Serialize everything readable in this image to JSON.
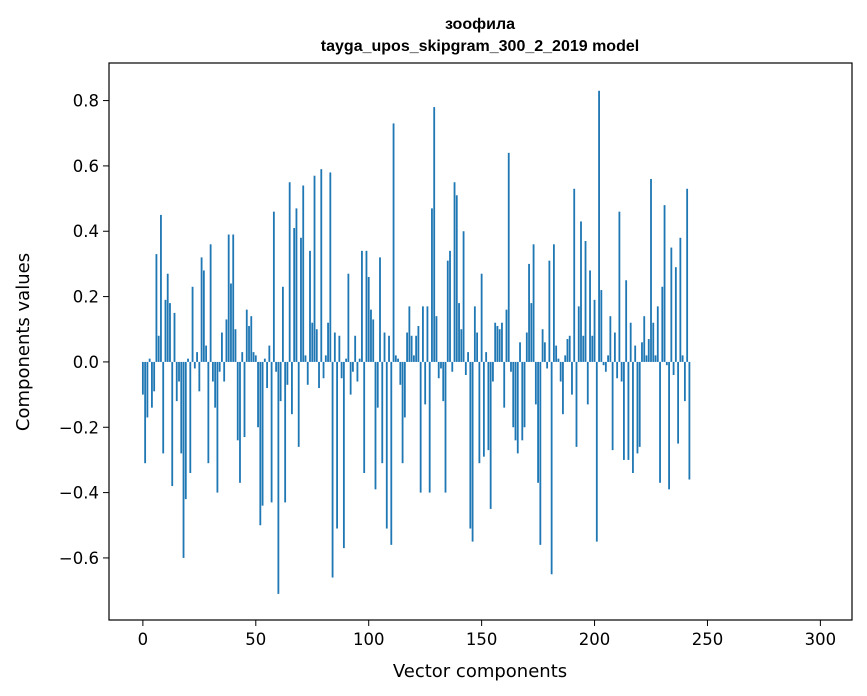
{
  "chart_data": {
    "type": "bar",
    "title_line1": "зоофила",
    "title_line2": "tayga_upos_skipgram_300_2_2019 model",
    "xlabel": "Vector components",
    "ylabel": "Components values",
    "xlim": [
      -15,
      314
    ],
    "ylim": [
      -0.79,
      0.915
    ],
    "x_ticks": [
      0,
      50,
      100,
      150,
      200,
      250,
      300
    ],
    "x_tick_labels": [
      "0",
      "50",
      "100",
      "150",
      "200",
      "250",
      "300"
    ],
    "y_ticks": [
      -0.6,
      -0.4,
      -0.2,
      0.0,
      0.2,
      0.4,
      0.6,
      0.8
    ],
    "y_tick_labels": [
      "−0.6",
      "−0.4",
      "−0.2",
      "0.0",
      "0.2",
      "0.4",
      "0.6",
      "0.8"
    ],
    "bar_color": "#1f77b4",
    "grid": false,
    "series": [
      {
        "name": "components",
        "values": [
          -0.1,
          -0.31,
          -0.17,
          0.01,
          -0.14,
          -0.09,
          0.33,
          0.08,
          0.45,
          -0.28,
          0.19,
          0.27,
          0.18,
          -0.38,
          0.15,
          -0.12,
          -0.06,
          -0.28,
          -0.6,
          -0.42,
          0.01,
          -0.34,
          0.23,
          -0.02,
          0.03,
          -0.09,
          0.32,
          0.28,
          0.05,
          -0.31,
          0.36,
          -0.06,
          -0.14,
          -0.4,
          -0.03,
          0.09,
          -0.06,
          0.13,
          0.39,
          0.24,
          0.39,
          0.1,
          -0.24,
          -0.37,
          0.03,
          -0.23,
          0.16,
          0.11,
          0.14,
          0.03,
          0.02,
          -0.2,
          -0.5,
          -0.44,
          0.01,
          -0.08,
          0.05,
          -0.43,
          0.46,
          -0.03,
          -0.71,
          -0.12,
          0.23,
          -0.43,
          -0.07,
          0.55,
          -0.16,
          0.41,
          0.47,
          -0.26,
          0.38,
          0.54,
          0.02,
          -0.07,
          0.34,
          0.12,
          0.57,
          0.1,
          -0.08,
          0.59,
          -0.05,
          0.02,
          0.12,
          0.58,
          -0.66,
          0.09,
          -0.51,
          0.08,
          -0.05,
          -0.57,
          0.01,
          0.27,
          -0.1,
          -0.03,
          0.08,
          -0.06,
          0.01,
          0.34,
          -0.34,
          0.34,
          0.26,
          0.16,
          0.13,
          -0.39,
          -0.14,
          0.32,
          -0.31,
          0.09,
          -0.51,
          0.08,
          -0.56,
          0.73,
          0.02,
          0.01,
          -0.07,
          -0.31,
          -0.17,
          0.09,
          0.17,
          0.08,
          0.02,
          0.08,
          0.11,
          -0.4,
          0.17,
          -0.13,
          0.17,
          -0.4,
          0.47,
          0.78,
          0.14,
          -0.05,
          -0.02,
          -0.12,
          -0.4,
          0.31,
          0.34,
          -0.03,
          0.55,
          0.51,
          0.18,
          0.1,
          0.4,
          -0.04,
          0.03,
          -0.51,
          -0.55,
          0.17,
          0.09,
          -0.31,
          0.27,
          -0.29,
          0.03,
          -0.27,
          -0.45,
          -0.06,
          0.12,
          0.11,
          0.1,
          0.12,
          -0.14,
          0.16,
          0.64,
          -0.03,
          -0.2,
          -0.24,
          -0.28,
          0.06,
          -0.24,
          -0.2,
          0.09,
          0.3,
          0.18,
          0.36,
          -0.13,
          -0.37,
          -0.56,
          0.1,
          0.06,
          -0.02,
          0.31,
          -0.65,
          0.36,
          0.05,
          0.01,
          -0.06,
          -0.16,
          0.02,
          0.07,
          0.08,
          -0.1,
          0.53,
          -0.26,
          0.17,
          0.43,
          0.08,
          0.37,
          -0.13,
          0.28,
          0.08,
          0.19,
          -0.55,
          0.83,
          0.22,
          -0.01,
          -0.03,
          0.02,
          0.14,
          -0.27,
          0.09,
          -0.05,
          0.46,
          -0.06,
          -0.3,
          0.25,
          -0.3,
          0.12,
          -0.34,
          0.05,
          -0.28,
          -0.26,
          0.06,
          0.14,
          0.02,
          0.07,
          0.56,
          0.12,
          0.02,
          0.17,
          -0.37,
          0.23,
          0.48,
          -0.01,
          -0.39,
          0.35,
          -0.04,
          0.29,
          -0.25,
          0.38,
          0.02,
          -0.12,
          0.53,
          -0.36
        ]
      }
    ]
  }
}
